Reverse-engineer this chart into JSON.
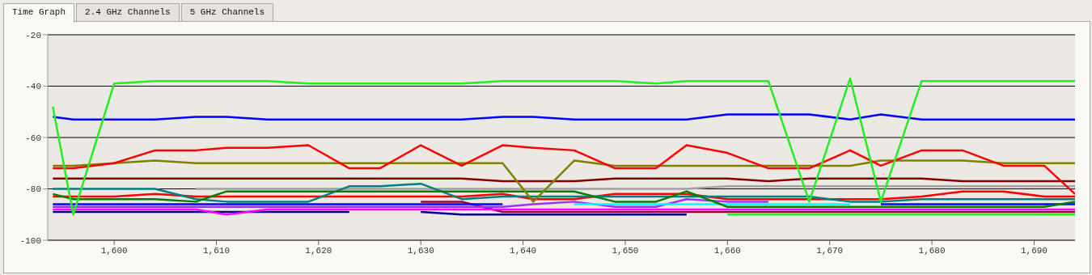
{
  "chart_data": {
    "type": "line",
    "annotations": [
      "Time Graph",
      "2.4 GHz Channels",
      "5 GHz Channels"
    ],
    "x": [
      1594,
      1596,
      1600,
      1604,
      1608,
      1611,
      1615,
      1619,
      1623,
      1626,
      1630,
      1634,
      1638,
      1641,
      1645,
      1649,
      1653,
      1656,
      1660,
      1664,
      1668,
      1672,
      1675,
      1679,
      1683,
      1687,
      1691,
      1694
    ],
    "xlim": [
      1593.5,
      1694
    ],
    "ylim": [
      -100,
      -20
    ],
    "xticks": [
      {
        "value": 1600,
        "label": "1,600"
      },
      {
        "value": 1610,
        "label": "1,610"
      },
      {
        "value": 1620,
        "label": "1,620"
      },
      {
        "value": 1630,
        "label": "1,630"
      },
      {
        "value": 1640,
        "label": "1,640"
      },
      {
        "value": 1650,
        "label": "1,650"
      },
      {
        "value": 1660,
        "label": "1,660"
      },
      {
        "value": 1670,
        "label": "1,670"
      },
      {
        "value": 1680,
        "label": "1,680"
      },
      {
        "value": 1690,
        "label": "1,690"
      }
    ],
    "yticks": [
      -20,
      -40,
      -60,
      -80,
      -100
    ],
    "grid": "y",
    "series": [
      {
        "color": "#990033",
        "values": [
          null,
          null,
          null,
          null,
          null,
          null,
          null,
          null,
          null,
          null,
          -85,
          -85,
          -89,
          -89,
          -89,
          -89,
          -89,
          -89,
          -89,
          -89,
          -89,
          -89,
          -89,
          -89,
          -89,
          -89,
          -89,
          -89
        ]
      },
      {
        "color": "#000080",
        "values": [
          -89,
          -89,
          -89,
          -89,
          -89,
          -89,
          -89,
          -89,
          -89,
          null,
          null,
          null,
          null,
          null,
          null,
          null,
          null,
          null,
          null,
          null,
          null,
          null,
          null,
          null,
          null,
          null,
          null,
          null
        ]
      },
      {
        "color": "#000099",
        "values": [
          null,
          null,
          null,
          null,
          null,
          null,
          null,
          null,
          null,
          null,
          -89,
          -90,
          -90,
          -90,
          -90,
          -90,
          -90,
          -90,
          null,
          null,
          null,
          null,
          null,
          null,
          null,
          null,
          null,
          null
        ]
      },
      {
        "color": "#ff00ff",
        "values": [
          -88,
          -88,
          -88,
          -88,
          -88,
          -90,
          -88,
          -88,
          -88,
          -88,
          -88,
          -88,
          -88,
          -88,
          -88,
          -88,
          -88,
          -88,
          -88,
          -88,
          -88,
          -88,
          -88,
          -88,
          -88,
          -88,
          -88,
          -88
        ]
      },
      {
        "color": "#9933ff",
        "values": [
          -87,
          -87,
          -87,
          -87,
          -87,
          -87,
          -87,
          -87,
          -87,
          -87,
          -87,
          -87,
          -87,
          -86,
          -85,
          -87,
          -87,
          -84,
          -85,
          -85,
          null,
          null,
          null,
          null,
          null,
          null,
          null,
          null
        ]
      },
      {
        "color": "#0000ff",
        "values": [
          -86,
          -86,
          -86,
          -86,
          -86,
          -86,
          -86,
          -86,
          -86,
          -86,
          -86,
          -86,
          -86,
          null,
          null,
          null,
          null,
          null,
          null,
          null,
          null,
          null,
          -86,
          -86,
          -86,
          -86,
          -86,
          -86
        ]
      },
      {
        "color": "#00ffff",
        "values": [
          null,
          null,
          null,
          null,
          null,
          null,
          null,
          null,
          null,
          null,
          null,
          null,
          null,
          null,
          -86,
          -86,
          -86,
          -86,
          -86,
          -86,
          -86,
          -86,
          null,
          null,
          null,
          null,
          null,
          null
        ]
      },
      {
        "color": "#22ee22",
        "values": [
          null,
          null,
          null,
          null,
          null,
          null,
          null,
          null,
          null,
          null,
          null,
          null,
          null,
          null,
          null,
          null,
          null,
          null,
          -90,
          -90,
          -90,
          -90,
          -90,
          -90,
          -90,
          -90,
          -90,
          -90
        ]
      },
      {
        "color": "#a0a0a0",
        "values": [
          null,
          null,
          null,
          null,
          -80,
          -80,
          -80,
          -80,
          -80,
          -80,
          -80,
          -80,
          -80,
          -80,
          -80,
          -80,
          -80,
          -80,
          -79,
          -79,
          -79,
          -79,
          -79,
          -79,
          -79,
          -79,
          -79,
          -79
        ]
      },
      {
        "color": "#ff0000",
        "values": [
          -83,
          -83,
          -83,
          -82,
          -83,
          -83,
          -83,
          -83,
          -83,
          -83,
          -83,
          -83,
          -82,
          -84,
          -84,
          -82,
          -82,
          -82,
          -84,
          -84,
          -84,
          -84,
          -84,
          -83,
          -81,
          -81,
          -83,
          -83
        ]
      },
      {
        "color": "#008080",
        "values": [
          -80,
          -80,
          -80,
          -80,
          -84,
          -85,
          -85,
          -85,
          -79,
          -79,
          -78,
          -84,
          -83,
          -83,
          -83,
          -83,
          -83,
          -83,
          -83,
          -83,
          -83,
          -85,
          -85,
          -84,
          -84,
          -84,
          -84,
          -84
        ]
      },
      {
        "color": "#008000",
        "values": [
          -82,
          -84,
          -84,
          -84,
          -85,
          -81,
          -81,
          -81,
          -81,
          -81,
          -81,
          -81,
          -81,
          -81,
          -81,
          -85,
          -85,
          -81,
          -87,
          -87,
          -87,
          -87,
          -87,
          -87,
          -87,
          -87,
          -87,
          -85
        ]
      },
      {
        "color": "#800000",
        "values": [
          -76,
          -76,
          -76,
          -76,
          -76,
          -76,
          -76,
          -76,
          -76,
          -76,
          -76,
          -76,
          -77,
          -77,
          -77,
          -76,
          -76,
          -76,
          -76,
          -77,
          -76,
          -76,
          -76,
          -76,
          -77,
          -77,
          -77,
          -77
        ]
      },
      {
        "color": "#808000",
        "values": [
          -71,
          -71,
          -70,
          -69,
          -70,
          -70,
          -70,
          -70,
          -70,
          -70,
          -70,
          -70,
          -70,
          -85,
          -69,
          -71,
          -71,
          -71,
          -71,
          -71,
          -71,
          -71,
          -69,
          -69,
          -69,
          -70,
          -70,
          -70
        ]
      },
      {
        "color": "#ff0000",
        "values": [
          -72,
          -72,
          -70,
          -65,
          -65,
          -64,
          -64,
          -63,
          -72,
          -72,
          -63,
          -71,
          -63,
          -64,
          -65,
          -72,
          -72,
          -63,
          -66,
          -72,
          -72,
          -65,
          -71,
          -65,
          -65,
          -71,
          -71,
          -82
        ]
      },
      {
        "color": "#0000ff",
        "values": [
          -52,
          -53,
          -53,
          -53,
          -52,
          -52,
          -53,
          -53,
          -53,
          -53,
          -53,
          -53,
          -52,
          -52,
          -53,
          -53,
          -53,
          -53,
          -51,
          -51,
          -51,
          -53,
          -51,
          -53,
          -53,
          -53,
          -53,
          -53
        ]
      },
      {
        "color": "#22ee22",
        "values": [
          -48,
          -90,
          -39,
          -38,
          -38,
          -38,
          -38,
          -39,
          -39,
          -39,
          -39,
          -39,
          -38,
          -38,
          -38,
          -38,
          -39,
          -38,
          -38,
          -38,
          -85,
          -37,
          -85,
          -38,
          -38,
          -38,
          -38,
          -38
        ]
      }
    ]
  }
}
